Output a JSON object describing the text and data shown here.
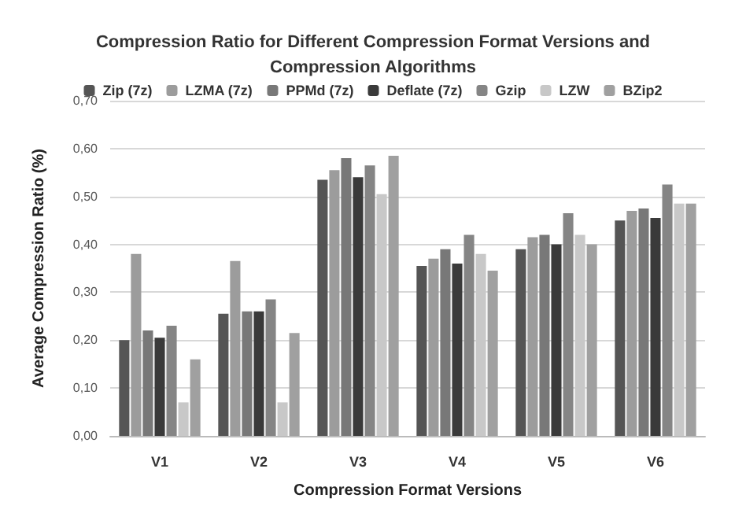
{
  "chart_data": {
    "type": "bar",
    "title": "Compression Ratio for Different Compression Format Versions and\nCompression Algorithms",
    "xlabel": "Compression Format Versions",
    "ylabel": "Average Compression Ratio (%)",
    "categories": [
      "V1",
      "V2",
      "V3",
      "V4",
      "V5",
      "V6"
    ],
    "series": [
      {
        "name": "Zip (7z)",
        "color": "#555555",
        "values": [
          0.2,
          0.255,
          0.535,
          0.355,
          0.39,
          0.45
        ]
      },
      {
        "name": "LZMA (7z)",
        "color": "#9c9c9c",
        "values": [
          0.38,
          0.365,
          0.555,
          0.37,
          0.415,
          0.47
        ]
      },
      {
        "name": "PPMd (7z)",
        "color": "#787878",
        "values": [
          0.22,
          0.26,
          0.58,
          0.39,
          0.42,
          0.475
        ]
      },
      {
        "name": "Deflate (7z)",
        "color": "#3a3a3a",
        "values": [
          0.205,
          0.26,
          0.54,
          0.36,
          0.4,
          0.455
        ]
      },
      {
        "name": "Gzip",
        "color": "#858585",
        "values": [
          0.23,
          0.285,
          0.565,
          0.42,
          0.465,
          0.525
        ]
      },
      {
        "name": "LZW",
        "color": "#c8c8c8",
        "values": [
          0.07,
          0.07,
          0.505,
          0.38,
          0.42,
          0.485
        ]
      },
      {
        "name": "BZip2",
        "color": "#a0a0a0",
        "values": [
          0.16,
          0.215,
          0.585,
          0.345,
          0.4,
          0.485
        ]
      }
    ],
    "ylim": [
      0,
      0.7
    ],
    "yticks": [
      {
        "value": 0,
        "label": "0,00"
      },
      {
        "value": 0.1,
        "label": "0,10"
      },
      {
        "value": 0.2,
        "label": "0,20"
      },
      {
        "value": 0.3,
        "label": "0,30"
      },
      {
        "value": 0.4,
        "label": "0,40"
      },
      {
        "value": 0.5,
        "label": "0,50"
      },
      {
        "value": 0.6,
        "label": "0,60"
      },
      {
        "value": 0.7,
        "label": "0,70"
      }
    ],
    "grid": "y",
    "legend": "top"
  }
}
